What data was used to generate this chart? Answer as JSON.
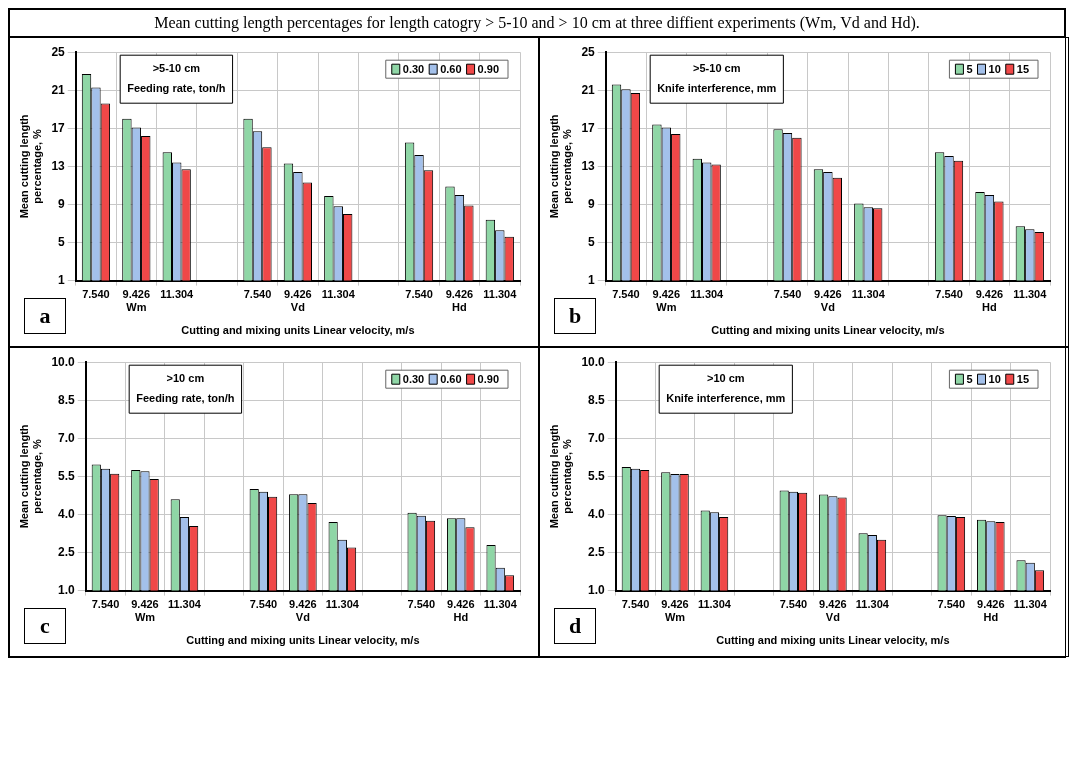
{
  "chart_data": [
    {
      "type": "other",
      "title": "Mean cutting length percentages for length catogry > 5-10 and  > 10 cm at three diffient experiments (Wm, Vd and Hd)."
    },
    {
      "type": "bar",
      "subtitle": ">5-10 cm",
      "legend_title": "Feeding rate, ton/h",
      "xlabel": "Cutting and mixing units Linear velocity, m/s",
      "ylabel": "Mean cutting length percentage, %",
      "categories": [
        "7.540",
        "9.426",
        "11.304",
        null,
        "7.540",
        "9.426",
        "11.304",
        null,
        "7.540",
        "9.426",
        "11.304"
      ],
      "series": [
        {
          "name": "0.30",
          "color": "#8fd6a6",
          "values": [
            22.7,
            18.0,
            14.5,
            null,
            18.0,
            13.3,
            9.9,
            null,
            15.5,
            10.9,
            7.4
          ]
        },
        {
          "name": "0.60",
          "color": "#a3c0ea",
          "values": [
            21.3,
            17.1,
            13.4,
            null,
            16.7,
            12.4,
            8.8,
            null,
            14.2,
            10.0,
            6.3
          ]
        },
        {
          "name": "0.90",
          "color": "#f04848",
          "values": [
            19.6,
            16.2,
            12.7,
            null,
            15.0,
            11.3,
            8.0,
            null,
            12.6,
            8.9,
            5.6
          ]
        }
      ],
      "ylim": [
        1,
        25
      ],
      "yticks": [
        1,
        5,
        9,
        13,
        17,
        21,
        25
      ],
      "grid": true,
      "legend": "top right",
      "annotations": [
        "Wm",
        "Vd",
        "Hd",
        "a"
      ]
    },
    {
      "type": "bar",
      "subtitle": ">5-10 cm",
      "legend_title": "Knife interference, mm",
      "xlabel": "Cutting and mixing units Linear velocity, m/s",
      "ylabel": "Mean cutting length percentage, %",
      "categories": [
        "7.540",
        "9.426",
        "11.304",
        null,
        "7.540",
        "9.426",
        "11.304",
        null,
        "7.540",
        "9.426",
        "11.304"
      ],
      "series": [
        {
          "name": "5",
          "color": "#8fd6a6",
          "values": [
            21.6,
            17.4,
            13.8,
            null,
            16.9,
            12.7,
            9.1,
            null,
            14.5,
            10.3,
            6.7
          ]
        },
        {
          "name": "10",
          "color": "#a3c0ea",
          "values": [
            21.1,
            17.1,
            13.4,
            null,
            16.5,
            12.4,
            8.7,
            null,
            14.1,
            10.0,
            6.4
          ]
        },
        {
          "name": "15",
          "color": "#f04848",
          "values": [
            20.7,
            16.4,
            13.2,
            null,
            16.0,
            11.8,
            8.6,
            null,
            13.6,
            9.3,
            6.1
          ]
        }
      ],
      "ylim": [
        1,
        25
      ],
      "yticks": [
        1,
        5,
        9,
        13,
        17,
        21,
        25
      ],
      "grid": true,
      "legend": "top right",
      "annotations": [
        "Wm",
        "Vd",
        "Hd",
        "b"
      ]
    },
    {
      "type": "bar",
      "subtitle": ">10 cm",
      "legend_title": "Feeding rate, ton/h",
      "xlabel": "Cutting and mixing units Linear velocity, m/s",
      "ylabel": "Mean cutting length percentage, %",
      "categories": [
        "7.540",
        "9.426",
        "11.304",
        null,
        "7.540",
        "9.426",
        "11.304",
        null,
        "7.540",
        "9.426",
        "11.304"
      ],
      "series": [
        {
          "name": "0.30",
          "color": "#8fd6a6",
          "values": [
            5.97,
            5.75,
            4.6,
            null,
            5.0,
            4.8,
            3.7,
            null,
            4.07,
            3.85,
            2.8
          ]
        },
        {
          "name": "0.60",
          "color": "#a3c0ea",
          "values": [
            5.8,
            5.7,
            3.9,
            null,
            4.9,
            4.8,
            3.0,
            null,
            3.95,
            3.85,
            1.9
          ]
        },
        {
          "name": "0.90",
          "color": "#f04848",
          "values": [
            5.6,
            5.4,
            3.55,
            null,
            4.7,
            4.45,
            2.7,
            null,
            3.75,
            3.5,
            1.6
          ]
        }
      ],
      "ylim": [
        1,
        10
      ],
      "yticks": [
        {
          "value": 1,
          "label": "1.0"
        },
        {
          "value": 2.5,
          "label": "2.5"
        },
        {
          "value": 4,
          "label": "4.0"
        },
        {
          "value": 5.5,
          "label": "5.5"
        },
        {
          "value": 7,
          "label": "7.0"
        },
        {
          "value": 8.5,
          "label": "8.5"
        },
        {
          "value": 10,
          "label": "10.0"
        }
      ],
      "grid": true,
      "legend": "top right",
      "annotations": [
        "Wm",
        "Vd",
        "Hd",
        "c"
      ]
    },
    {
      "type": "bar",
      "subtitle": ">10 cm",
      "legend_title": "Knife interference, mm",
      "xlabel": "Cutting and mixing units Linear velocity, m/s",
      "ylabel": "Mean cutting length percentage, %",
      "categories": [
        "7.540",
        "9.426",
        "11.304",
        null,
        "7.540",
        "9.426",
        "11.304",
        null,
        "7.540",
        "9.426",
        "11.304"
      ],
      "series": [
        {
          "name": "5",
          "color": "#8fd6a6",
          "values": [
            5.87,
            5.66,
            4.16,
            null,
            4.94,
            4.79,
            3.26,
            null,
            3.97,
            3.79,
            2.2
          ]
        },
        {
          "name": "10",
          "color": "#a3c0ea",
          "values": [
            5.8,
            5.59,
            4.09,
            null,
            4.9,
            4.72,
            3.19,
            null,
            3.94,
            3.73,
            2.1
          ]
        },
        {
          "name": "15",
          "color": "#f04848",
          "values": [
            5.75,
            5.59,
            3.9,
            null,
            4.86,
            4.67,
            3.0,
            null,
            3.9,
            3.7,
            1.8
          ]
        }
      ],
      "ylim": [
        1,
        10
      ],
      "yticks": [
        {
          "value": 1,
          "label": "1.0"
        },
        {
          "value": 2.5,
          "label": "2.5"
        },
        {
          "value": 4,
          "label": "4.0"
        },
        {
          "value": 5.5,
          "label": "5.5"
        },
        {
          "value": 7,
          "label": "7.0"
        },
        {
          "value": 8.5,
          "label": "8.5"
        },
        {
          "value": 10,
          "label": "10.0"
        }
      ],
      "grid": true,
      "legend": "top right",
      "annotations": [
        "Wm",
        "Vd",
        "Hd",
        "d"
      ]
    }
  ]
}
